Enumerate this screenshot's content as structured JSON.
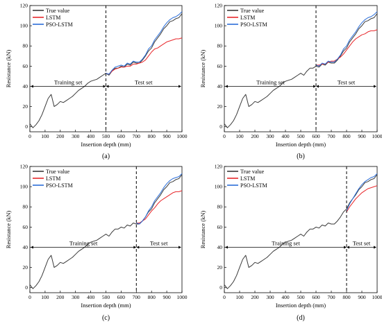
{
  "chart_data": [
    {
      "type": "line",
      "caption": "(a)",
      "xlabel": "Insertion depth (mm)",
      "ylabel": "Resistance (kN)",
      "xlim": [
        0,
        1000
      ],
      "ylim": [
        -5,
        120
      ],
      "xticks": [
        0,
        100,
        200,
        300,
        400,
        500,
        600,
        700,
        800,
        900,
        1000
      ],
      "yticks": [
        0,
        20,
        40,
        60,
        80,
        100,
        120
      ],
      "split": 500,
      "training_label": "Training set",
      "test_label": "Test set",
      "legend": [
        "True value",
        "LSTM",
        "PSO-LSTM"
      ],
      "series": [
        {
          "name": "True value",
          "color": "#3a3a3a",
          "x": [
            0,
            20,
            40,
            60,
            80,
            100,
            120,
            140,
            160,
            180,
            200,
            220,
            240,
            260,
            280,
            300,
            320,
            340,
            360,
            380,
            400,
            420,
            440,
            460,
            480,
            500,
            520,
            540,
            560,
            580,
            600,
            620,
            640,
            660,
            680,
            700,
            720,
            740,
            760,
            780,
            800,
            820,
            840,
            860,
            880,
            900,
            920,
            940,
            960,
            980,
            1000
          ],
          "y": [
            3,
            -1,
            2,
            6,
            12,
            20,
            28,
            32,
            20,
            22,
            25,
            24,
            26,
            28,
            30,
            33,
            36,
            38,
            40,
            43,
            45,
            46,
            47,
            49,
            51,
            53,
            51,
            55,
            58,
            58,
            60,
            59,
            62,
            61,
            64,
            63,
            63,
            66,
            70,
            75,
            78,
            84,
            88,
            92,
            97,
            100,
            104,
            105,
            107,
            108,
            112
          ]
        },
        {
          "name": "LSTM",
          "color": "#e8262a",
          "x": [
            500,
            520,
            540,
            560,
            580,
            600,
            620,
            640,
            660,
            680,
            700,
            720,
            740,
            760,
            780,
            800,
            820,
            840,
            860,
            880,
            900,
            920,
            940,
            960,
            980,
            1000
          ],
          "y": [
            53,
            52,
            55,
            57,
            58,
            59,
            59,
            60,
            60,
            62,
            62,
            63,
            64,
            66,
            70,
            74,
            77,
            78,
            80,
            82,
            84,
            85,
            86,
            87,
            87,
            88
          ]
        },
        {
          "name": "PSO-LSTM",
          "color": "#2a6dd9",
          "x": [
            500,
            520,
            540,
            560,
            580,
            600,
            620,
            640,
            660,
            680,
            700,
            720,
            740,
            760,
            780,
            800,
            820,
            840,
            860,
            880,
            900,
            920,
            940,
            960,
            980,
            1000
          ],
          "y": [
            53,
            52,
            56,
            59,
            60,
            61,
            60,
            63,
            62,
            65,
            64,
            64,
            67,
            71,
            77,
            80,
            86,
            90,
            94,
            99,
            103,
            106,
            108,
            109,
            111,
            114
          ]
        }
      ]
    },
    {
      "type": "line",
      "caption": "(b)",
      "xlabel": "Insertion depth (mm)",
      "ylabel": "Resistance (kN)",
      "xlim": [
        0,
        1000
      ],
      "ylim": [
        -5,
        120
      ],
      "xticks": [
        0,
        100,
        200,
        300,
        400,
        500,
        600,
        700,
        800,
        900,
        1000
      ],
      "yticks": [
        0,
        20,
        40,
        60,
        80,
        100,
        120
      ],
      "split": 600,
      "training_label": "Training set",
      "test_label": "Test set",
      "legend": [
        "True value",
        "LSTM",
        "PSO-LSTM"
      ],
      "series": [
        {
          "name": "True value",
          "color": "#3a3a3a",
          "x": [
            0,
            20,
            40,
            60,
            80,
            100,
            120,
            140,
            160,
            180,
            200,
            220,
            240,
            260,
            280,
            300,
            320,
            340,
            360,
            380,
            400,
            420,
            440,
            460,
            480,
            500,
            520,
            540,
            560,
            580,
            600,
            620,
            640,
            660,
            680,
            700,
            720,
            740,
            760,
            780,
            800,
            820,
            840,
            860,
            880,
            900,
            920,
            940,
            960,
            980,
            1000
          ],
          "y": [
            3,
            -1,
            2,
            6,
            12,
            20,
            28,
            32,
            20,
            22,
            25,
            24,
            26,
            28,
            30,
            33,
            36,
            38,
            40,
            43,
            45,
            46,
            47,
            49,
            51,
            53,
            51,
            55,
            58,
            58,
            60,
            59,
            62,
            61,
            64,
            63,
            63,
            66,
            70,
            75,
            78,
            84,
            88,
            92,
            97,
            100,
            104,
            105,
            107,
            108,
            112
          ]
        },
        {
          "name": "LSTM",
          "color": "#e8262a",
          "x": [
            600,
            620,
            640,
            660,
            680,
            700,
            720,
            740,
            760,
            780,
            800,
            820,
            840,
            860,
            880,
            900,
            920,
            940,
            960,
            980,
            1000
          ],
          "y": [
            61,
            61,
            62,
            62,
            64,
            65,
            65,
            67,
            69,
            72,
            76,
            80,
            84,
            87,
            89,
            91,
            92,
            94,
            95,
            95,
            96
          ]
        },
        {
          "name": "PSO-LSTM",
          "color": "#2a6dd9",
          "x": [
            600,
            620,
            640,
            660,
            680,
            700,
            720,
            740,
            760,
            780,
            800,
            820,
            840,
            860,
            880,
            900,
            920,
            940,
            960,
            980,
            1000
          ],
          "y": [
            61,
            60,
            63,
            62,
            65,
            64,
            64,
            67,
            71,
            77,
            80,
            86,
            90,
            94,
            99,
            103,
            106,
            108,
            109,
            111,
            114
          ]
        }
      ]
    },
    {
      "type": "line",
      "caption": "(c)",
      "xlabel": "Insertion depth (mm)",
      "ylabel": "Resistance (kN)",
      "xlim": [
        0,
        1000
      ],
      "ylim": [
        -5,
        120
      ],
      "xticks": [
        0,
        100,
        200,
        300,
        400,
        500,
        600,
        700,
        800,
        900,
        1000
      ],
      "yticks": [
        0,
        20,
        40,
        60,
        80,
        100,
        120
      ],
      "split": 700,
      "training_label": "Training set",
      "test_label": "Test set",
      "legend": [
        "True value",
        "LSTM",
        "PSO-LSTM"
      ],
      "series": [
        {
          "name": "True value",
          "color": "#3a3a3a",
          "x": [
            0,
            20,
            40,
            60,
            80,
            100,
            120,
            140,
            160,
            180,
            200,
            220,
            240,
            260,
            280,
            300,
            320,
            340,
            360,
            380,
            400,
            420,
            440,
            460,
            480,
            500,
            520,
            540,
            560,
            580,
            600,
            620,
            640,
            660,
            680,
            700,
            720,
            740,
            760,
            780,
            800,
            820,
            840,
            860,
            880,
            900,
            920,
            940,
            960,
            980,
            1000
          ],
          "y": [
            3,
            -1,
            2,
            6,
            12,
            20,
            28,
            32,
            20,
            22,
            25,
            24,
            26,
            28,
            30,
            33,
            36,
            38,
            40,
            43,
            45,
            46,
            47,
            49,
            51,
            53,
            51,
            55,
            58,
            58,
            60,
            59,
            62,
            61,
            64,
            63,
            63,
            66,
            70,
            75,
            78,
            84,
            88,
            92,
            97,
            100,
            104,
            105,
            107,
            108,
            112
          ]
        },
        {
          "name": "LSTM",
          "color": "#e8262a",
          "x": [
            700,
            720,
            740,
            760,
            780,
            800,
            820,
            840,
            860,
            880,
            900,
            920,
            940,
            960,
            980,
            1000
          ],
          "y": [
            64,
            64,
            66,
            68,
            72,
            76,
            79,
            83,
            86,
            88,
            90,
            92,
            94,
            95,
            95,
            96
          ]
        },
        {
          "name": "PSO-LSTM",
          "color": "#2a6dd9",
          "x": [
            700,
            720,
            740,
            760,
            780,
            800,
            820,
            840,
            860,
            880,
            900,
            920,
            940,
            960,
            980,
            1000
          ],
          "y": [
            64,
            63,
            66,
            70,
            76,
            80,
            86,
            90,
            94,
            99,
            103,
            106,
            108,
            109,
            110,
            113
          ]
        }
      ]
    },
    {
      "type": "line",
      "caption": "(d)",
      "xlabel": "Insertion depth (mm)",
      "ylabel": "Resistance (kN)",
      "xlim": [
        0,
        1000
      ],
      "ylim": [
        -5,
        120
      ],
      "xticks": [
        0,
        100,
        200,
        300,
        400,
        500,
        600,
        700,
        800,
        900,
        1000
      ],
      "yticks": [
        0,
        20,
        40,
        60,
        80,
        100,
        120
      ],
      "split": 800,
      "training_label": "Training set",
      "test_label": "Test set",
      "legend": [
        "True value",
        "LSTM",
        "PSO-LSTM"
      ],
      "series": [
        {
          "name": "True value",
          "color": "#3a3a3a",
          "x": [
            0,
            20,
            40,
            60,
            80,
            100,
            120,
            140,
            160,
            180,
            200,
            220,
            240,
            260,
            280,
            300,
            320,
            340,
            360,
            380,
            400,
            420,
            440,
            460,
            480,
            500,
            520,
            540,
            560,
            580,
            600,
            620,
            640,
            660,
            680,
            700,
            720,
            740,
            760,
            780,
            800,
            820,
            840,
            860,
            880,
            900,
            920,
            940,
            960,
            980,
            1000
          ],
          "y": [
            3,
            -1,
            2,
            6,
            12,
            20,
            28,
            32,
            20,
            22,
            25,
            24,
            26,
            28,
            30,
            33,
            36,
            38,
            40,
            43,
            45,
            46,
            47,
            49,
            51,
            53,
            51,
            55,
            58,
            58,
            60,
            59,
            62,
            61,
            64,
            63,
            63,
            66,
            70,
            75,
            78,
            84,
            88,
            92,
            97,
            100,
            104,
            105,
            107,
            108,
            112
          ]
        },
        {
          "name": "LSTM",
          "color": "#e8262a",
          "x": [
            800,
            820,
            840,
            860,
            880,
            900,
            920,
            940,
            960,
            980,
            1000
          ],
          "y": [
            75,
            80,
            84,
            88,
            91,
            94,
            96,
            98,
            99,
            100,
            101
          ]
        },
        {
          "name": "PSO-LSTM",
          "color": "#2a6dd9",
          "x": [
            800,
            820,
            840,
            860,
            880,
            900,
            920,
            940,
            960,
            980,
            1000
          ],
          "y": [
            76,
            83,
            88,
            93,
            98,
            102,
            105,
            107,
            109,
            110,
            113
          ]
        }
      ]
    }
  ]
}
